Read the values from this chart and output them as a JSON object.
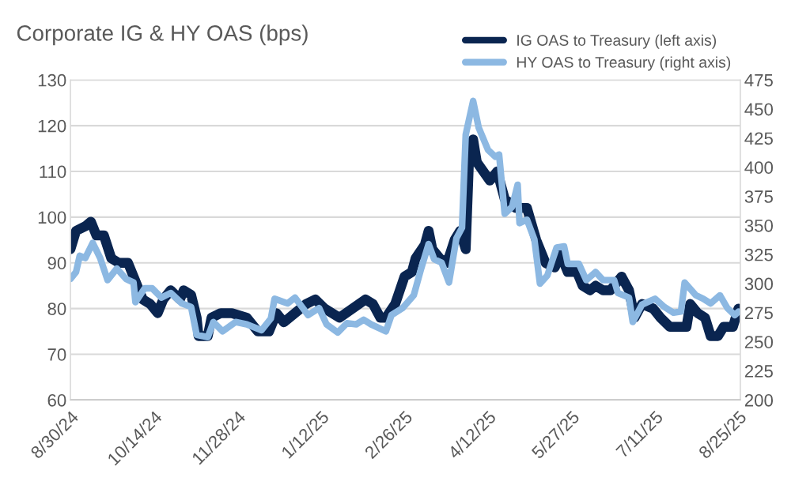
{
  "chart_data": {
    "type": "line",
    "title": "Corporate IG & HY OAS (bps)",
    "xlim": [
      "2024-08-30",
      "2025-08-26"
    ],
    "xticks": [
      {
        "value": "2024-08-30",
        "label": "8/30/24"
      },
      {
        "value": "2024-10-14",
        "label": "10/14/24"
      },
      {
        "value": "2024-11-28",
        "label": "11/28/24"
      },
      {
        "value": "2025-01-12",
        "label": "1/12/25"
      },
      {
        "value": "2025-02-26",
        "label": "2/26/25"
      },
      {
        "value": "2025-04-12",
        "label": "4/12/25"
      },
      {
        "value": "2025-05-27",
        "label": "5/27/25"
      },
      {
        "value": "2025-07-11",
        "label": "7/11/25"
      },
      {
        "value": "2025-08-25",
        "label": "8/25/25"
      }
    ],
    "ylim": [
      60,
      130
    ],
    "yticks": [
      60,
      70,
      80,
      90,
      100,
      110,
      120,
      130
    ],
    "y2lim": [
      200,
      475
    ],
    "y2ticks": [
      200,
      225,
      250,
      275,
      300,
      325,
      350,
      375,
      400,
      425,
      450,
      475
    ],
    "grid": "y",
    "legend": "top right",
    "line_style": "solid",
    "series": [
      {
        "name": "IG OAS to Treasury (left axis)",
        "color": "#0a2550",
        "x": [
          "2024-08-30",
          "2024-09-02",
          "2024-09-07",
          "2024-09-10",
          "2024-09-13",
          "2024-09-17",
          "2024-09-21",
          "2024-09-25",
          "2024-09-30",
          "2024-10-03",
          "2024-10-08",
          "2024-10-12",
          "2024-10-16",
          "2024-10-19",
          "2024-10-23",
          "2024-10-28",
          "2024-10-30",
          "2024-11-03",
          "2024-11-06",
          "2024-11-07",
          "2024-11-12",
          "2024-11-14",
          "2024-11-19",
          "2024-11-25",
          "2024-12-03",
          "2024-12-09",
          "2024-12-15",
          "2024-12-19",
          "2024-12-23",
          "2024-12-29",
          "2025-01-04",
          "2025-01-09",
          "2025-01-14",
          "2025-01-22",
          "2025-01-29",
          "2025-02-05",
          "2025-02-09",
          "2025-02-13",
          "2025-02-16",
          "2025-02-21",
          "2025-02-26",
          "2025-03-02",
          "2025-03-04",
          "2025-03-09",
          "2025-03-11",
          "2025-03-13",
          "2025-03-17",
          "2025-03-21",
          "2025-03-25",
          "2025-03-28",
          "2025-03-31",
          "2025-04-02",
          "2025-04-04",
          "2025-04-06",
          "2025-04-13",
          "2025-04-17",
          "2025-04-21",
          "2025-04-27",
          "2025-05-03",
          "2025-05-08",
          "2025-05-13",
          "2025-05-18",
          "2025-05-21",
          "2025-05-25",
          "2025-05-30",
          "2025-06-02",
          "2025-06-06",
          "2025-06-09",
          "2025-06-13",
          "2025-06-17",
          "2025-06-23",
          "2025-06-27",
          "2025-06-30",
          "2025-07-04",
          "2025-07-10",
          "2025-07-14",
          "2025-07-19",
          "2025-07-24",
          "2025-07-28",
          "2025-07-30",
          "2025-08-03",
          "2025-08-07",
          "2025-08-10",
          "2025-08-14",
          "2025-08-17",
          "2025-08-22",
          "2025-08-25"
        ],
        "values": [
          93,
          97,
          98,
          99,
          96,
          96,
          91,
          90,
          90,
          87,
          82,
          81,
          79,
          82,
          84,
          82,
          84,
          83,
          78,
          74,
          74,
          78,
          79,
          79,
          78,
          75,
          75,
          79,
          77,
          79,
          81,
          82,
          80,
          78,
          80,
          82,
          81,
          78,
          78,
          81,
          87,
          88,
          91,
          94,
          97,
          93,
          91,
          90,
          95,
          97,
          93,
          115,
          117,
          112,
          108,
          110,
          104,
          102,
          102,
          95,
          90,
          89,
          92,
          88,
          88,
          85,
          84,
          85,
          84,
          84,
          87,
          84,
          78,
          81,
          80,
          78,
          76,
          76,
          76,
          81,
          79,
          78,
          74,
          74,
          76,
          76,
          80
        ]
      },
      {
        "name": "HY OAS to Treasury (right axis)",
        "color": "#8cb8e2",
        "axis": "y2",
        "x": [
          "2024-08-30",
          "2024-09-02",
          "2024-09-04",
          "2024-09-07",
          "2024-09-11",
          "2024-09-15",
          "2024-09-19",
          "2024-09-24",
          "2024-09-29",
          "2024-10-03",
          "2024-10-04",
          "2024-10-09",
          "2024-10-13",
          "2024-10-18",
          "2024-10-23",
          "2024-10-29",
          "2024-11-03",
          "2024-11-06",
          "2024-11-12",
          "2024-11-15",
          "2024-11-20",
          "2024-11-27",
          "2024-12-03",
          "2024-12-11",
          "2024-12-16",
          "2024-12-18",
          "2024-12-25",
          "2024-12-29",
          "2025-01-05",
          "2025-01-11",
          "2025-01-15",
          "2025-01-21",
          "2025-01-26",
          "2025-01-31",
          "2025-02-04",
          "2025-02-08",
          "2025-02-16",
          "2025-02-19",
          "2025-02-25",
          "2025-03-03",
          "2025-03-07",
          "2025-03-11",
          "2025-03-14",
          "2025-03-18",
          "2025-03-22",
          "2025-03-26",
          "2025-03-29",
          "2025-03-31",
          "2025-04-04",
          "2025-04-07",
          "2025-04-12",
          "2025-04-16",
          "2025-04-18",
          "2025-04-21",
          "2025-04-25",
          "2025-04-28",
          "2025-04-29",
          "2025-05-03",
          "2025-05-07",
          "2025-05-10",
          "2025-05-14",
          "2025-05-19",
          "2025-05-23",
          "2025-05-25",
          "2025-05-31",
          "2025-06-04",
          "2025-06-09",
          "2025-06-13",
          "2025-06-19",
          "2025-06-21",
          "2025-06-27",
          "2025-06-29",
          "2025-07-04",
          "2025-07-11",
          "2025-07-16",
          "2025-07-21",
          "2025-07-25",
          "2025-07-27",
          "2025-08-02",
          "2025-08-06",
          "2025-08-10",
          "2025-08-15",
          "2025-08-19",
          "2025-08-23",
          "2025-08-25"
        ],
        "values": [
          304,
          310,
          324,
          322,
          335,
          322,
          303,
          313,
          304,
          301,
          284,
          296,
          296,
          288,
          292,
          283,
          280,
          256,
          254,
          267,
          259,
          267,
          265,
          260,
          270,
          287,
          283,
          288,
          273,
          279,
          265,
          258,
          266,
          265,
          269,
          265,
          259,
          273,
          279,
          290,
          313,
          334,
          321,
          318,
          301,
          339,
          348,
          428,
          457,
          434,
          415,
          409,
          411,
          360,
          366,
          385,
          352,
          355,
          338,
          300,
          307,
          331,
          332,
          317,
          317,
          303,
          310,
          303,
          303,
          292,
          288,
          267,
          282,
          287,
          280,
          275,
          276,
          301,
          290,
          287,
          283,
          290,
          279,
          273,
          276
        ]
      }
    ]
  }
}
